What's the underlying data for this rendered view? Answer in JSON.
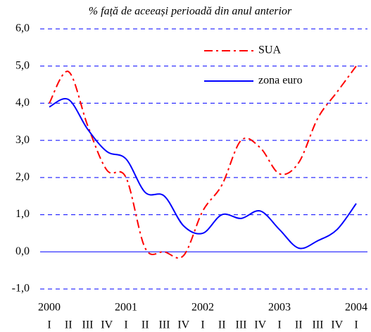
{
  "chart_data": {
    "type": "line",
    "subtitle": "% față de aceeași perioadă din anul anterior",
    "categories": [
      "I",
      "II",
      "III",
      "IV",
      "I",
      "II",
      "III",
      "IV",
      "I",
      "II",
      "III",
      "IV",
      "I",
      "II",
      "III",
      "IV",
      "I"
    ],
    "years": [
      "2000",
      "2001",
      "2002",
      "2003",
      "2004"
    ],
    "series": [
      {
        "name": "SUA",
        "color": "#ff0000",
        "dash": "dash-dot",
        "values": [
          4.0,
          4.85,
          3.4,
          2.2,
          2.0,
          0.1,
          0.0,
          -0.1,
          1.1,
          1.8,
          3.0,
          2.8,
          2.1,
          2.4,
          3.6,
          4.3,
          5.0
        ]
      },
      {
        "name": "zona euro",
        "color": "#0000ff",
        "dash": "solid",
        "values": [
          3.9,
          4.1,
          3.3,
          2.7,
          2.5,
          1.6,
          1.5,
          0.7,
          0.5,
          1.0,
          0.9,
          1.1,
          0.6,
          0.1,
          0.3,
          0.6,
          1.3
        ]
      }
    ],
    "ylim": [
      -1,
      6
    ],
    "yticks": [
      {
        "value": -1,
        "label": "-1,0"
      },
      {
        "value": 0,
        "label": "0,0"
      },
      {
        "value": 1,
        "label": "1,0"
      },
      {
        "value": 2,
        "label": "2,0"
      },
      {
        "value": 3,
        "label": "3,0"
      },
      {
        "value": 4,
        "label": "4,0"
      },
      {
        "value": 5,
        "label": "5,0"
      },
      {
        "value": 6,
        "label": "6,0"
      }
    ],
    "grid": true,
    "smooth": true
  }
}
